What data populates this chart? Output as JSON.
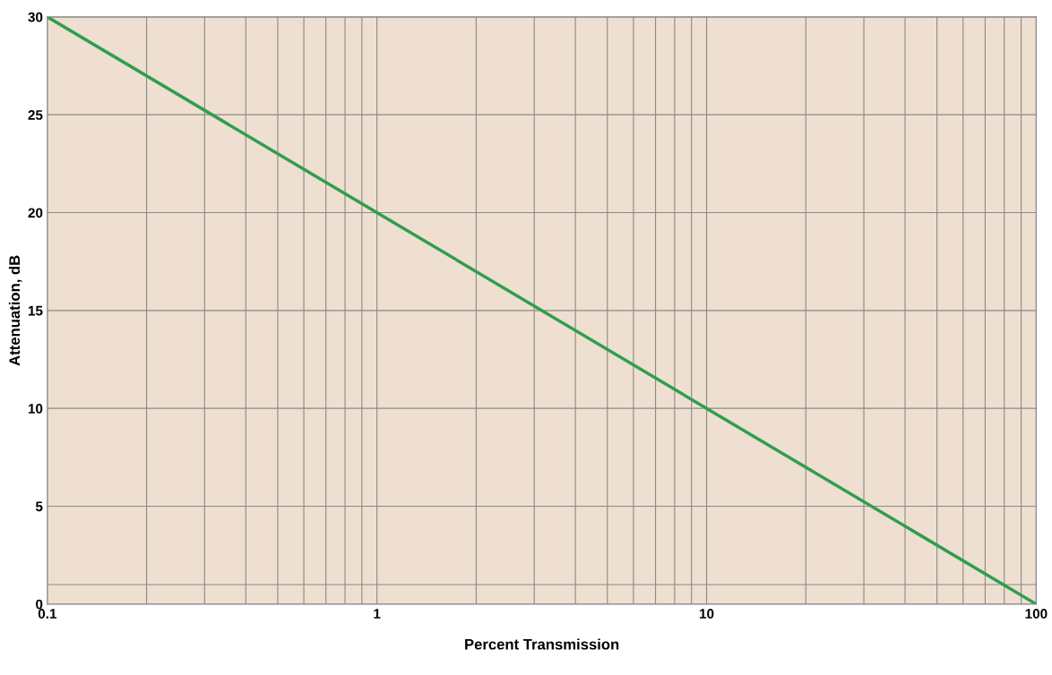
{
  "chart_data": {
    "type": "line",
    "xlabel": "Percent Transmission",
    "ylabel": "Attenuation, dB",
    "x": [
      0.1,
      1,
      10,
      100
    ],
    "series": [
      {
        "color": "#2e9e4f",
        "values": [
          30,
          20,
          10,
          0
        ]
      }
    ],
    "log": "x",
    "xlim": [
      0.1,
      100
    ],
    "xticks": [
      0.1,
      {
        "value": 0.2,
        "label": null
      },
      {
        "value": 0.3,
        "label": null
      },
      {
        "value": 0.4,
        "label": null
      },
      {
        "value": 0.5,
        "label": null
      },
      {
        "value": 0.6,
        "label": null
      },
      {
        "value": 0.7,
        "label": null
      },
      {
        "value": 0.8,
        "label": null
      },
      {
        "value": 0.9,
        "label": null
      },
      1,
      {
        "value": 2,
        "label": null
      },
      {
        "value": 3,
        "label": null
      },
      {
        "value": 4,
        "label": null
      },
      {
        "value": 5,
        "label": null
      },
      {
        "value": 6,
        "label": null
      },
      {
        "value": 7,
        "label": null
      },
      {
        "value": 8,
        "label": null
      },
      {
        "value": 9,
        "label": null
      },
      10,
      {
        "value": 20,
        "label": null
      },
      {
        "value": 30,
        "label": null
      },
      {
        "value": 40,
        "label": null
      },
      {
        "value": 50,
        "label": null
      },
      {
        "value": 60,
        "label": null
      },
      {
        "value": 70,
        "label": null
      },
      {
        "value": 80,
        "label": null
      },
      {
        "value": 90,
        "label": null
      },
      100
    ],
    "ylim": [
      0,
      30
    ],
    "yticks": [
      0,
      {
        "value": 1,
        "label": null
      },
      5,
      10,
      15,
      20,
      25,
      30
    ],
    "grid": true,
    "marker": "none",
    "line_style": "solid"
  }
}
